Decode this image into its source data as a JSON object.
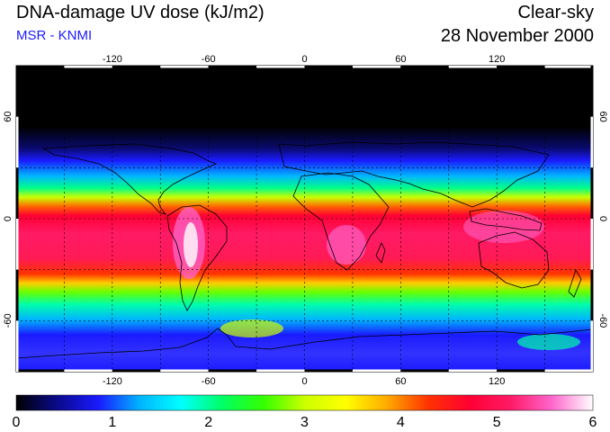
{
  "header": {
    "title": "DNA-damage UV dose (kJ/m2)",
    "source": "MSR - KNMI",
    "mode": "Clear-sky",
    "date": "28 November 2000"
  },
  "map": {
    "projection": "equirectangular",
    "lon_range": [
      -180,
      180
    ],
    "lat_range": [
      -90,
      90
    ],
    "lon_ticks": [
      -120,
      -60,
      0,
      60,
      120
    ],
    "lat_ticks": [
      60,
      0,
      -60
    ],
    "grid": "dotted every 30 degrees",
    "land_outline": "coastlines"
  },
  "colorbar": {
    "min": 0,
    "max": 6,
    "labels": [
      "0",
      "1",
      "2",
      "3",
      "4",
      "5",
      "6"
    ],
    "colors": [
      "#000000",
      "#0a0a8c",
      "#1a1aff",
      "#00b4ff",
      "#00ffff",
      "#00ff66",
      "#33ff00",
      "#ccff00",
      "#ffff00",
      "#ffaa00",
      "#ff3300",
      "#ff0033",
      "#ff1a66",
      "#ff66cc",
      "#ffffff"
    ]
  },
  "colors": {
    "subtitle": "#1a1aff",
    "frame": "#000000"
  }
}
